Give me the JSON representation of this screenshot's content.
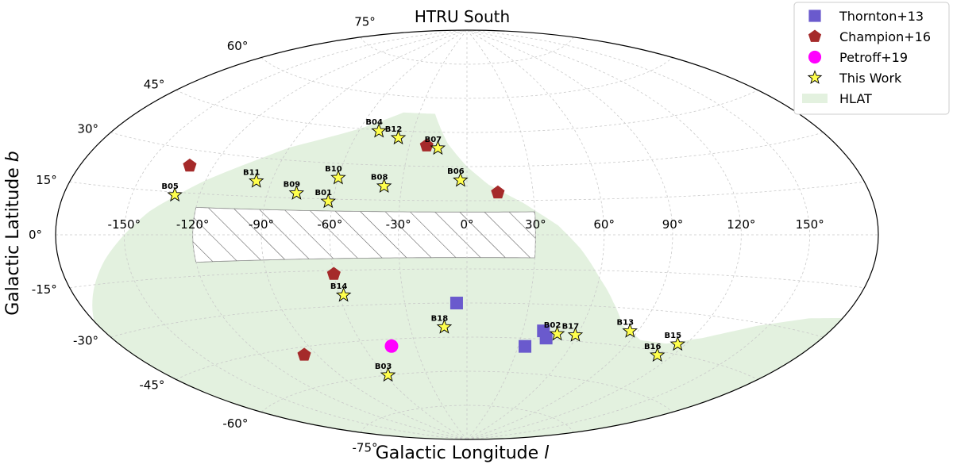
{
  "chart_data": {
    "type": "scatter",
    "projection": "aitoff",
    "title": "HTRU South",
    "xlabel": "Galactic Longitude",
    "xlabel_symbol": "l",
    "ylabel": "Galactic Latitude",
    "ylabel_symbol": "b",
    "xlim": [
      -180,
      180
    ],
    "ylim": [
      -90,
      90
    ],
    "grid": true,
    "legend_position": "top-right",
    "x_ticks": [
      {
        "value": -150,
        "label": "-150°"
      },
      {
        "value": -120,
        "label": "-120°"
      },
      {
        "value": -90,
        "label": "-90°"
      },
      {
        "value": -60,
        "label": "-60°"
      },
      {
        "value": -30,
        "label": "-30°"
      },
      {
        "value": 0,
        "label": "0°"
      },
      {
        "value": 30,
        "label": "30°"
      },
      {
        "value": 60,
        "label": "60°"
      },
      {
        "value": 90,
        "label": "90°"
      },
      {
        "value": 120,
        "label": "120°"
      },
      {
        "value": 150,
        "label": "150°"
      }
    ],
    "y_ticks": [
      {
        "value": 75,
        "label": "75°"
      },
      {
        "value": 60,
        "label": "60°"
      },
      {
        "value": 45,
        "label": "45°"
      },
      {
        "value": 30,
        "label": "30°"
      },
      {
        "value": 15,
        "label": "15°"
      },
      {
        "value": 0,
        "label": "0°"
      },
      {
        "value": -15,
        "label": "-15°"
      },
      {
        "value": -30,
        "label": "-30°"
      },
      {
        "value": -45,
        "label": "-45°"
      },
      {
        "value": -60,
        "label": "-60°"
      },
      {
        "value": -75,
        "label": "-75°"
      }
    ],
    "hatched_region": {
      "l_range": [
        -120,
        30
      ],
      "b_range": [
        -10,
        10
      ]
    },
    "regions": [
      {
        "name": "HLAT",
        "color": "#e3f1df",
        "outline": [
          [
            -20,
            53
          ],
          [
            -16,
            48
          ],
          [
            -10,
            40
          ],
          [
            0,
            30
          ],
          [
            10,
            22
          ],
          [
            25,
            14
          ],
          [
            40,
            4
          ],
          [
            50,
            -6
          ],
          [
            60,
            -18
          ],
          [
            70,
            -28
          ],
          [
            80,
            -37
          ],
          [
            95,
            -42
          ],
          [
            110,
            -42
          ],
          [
            125,
            -38
          ],
          [
            145,
            -31
          ],
          [
            165,
            -26
          ],
          [
            180,
            -24
          ],
          [
            180,
            -90
          ],
          [
            -180,
            -90
          ],
          [
            -180,
            -25
          ],
          [
            -160,
            -8
          ],
          [
            -140,
            8
          ],
          [
            -120,
            20
          ],
          [
            -90,
            35
          ],
          [
            -60,
            45
          ],
          [
            -40,
            53
          ],
          [
            -20,
            53
          ]
        ]
      }
    ],
    "series": [
      {
        "name": "Thornton+13",
        "marker": "square",
        "color": "#6a5acd",
        "points": [
          {
            "l": -5,
            "b": -30
          },
          {
            "l": 41,
            "b": -41.5
          },
          {
            "l": 44,
            "b": -44.5
          },
          {
            "l": 34,
            "b": -48.5
          }
        ]
      },
      {
        "name": "Champion+16",
        "marker": "pentagon",
        "color": "#a52a2a",
        "points": [
          {
            "l": -131,
            "b": 24.5
          },
          {
            "l": -21,
            "b": 39
          },
          {
            "l": 14,
            "b": 18.5
          },
          {
            "l": -60,
            "b": -16.5
          },
          {
            "l": -97,
            "b": -48
          }
        ]
      },
      {
        "name": "Petroff+19",
        "marker": "circle",
        "color": "#ff00ff",
        "points": [
          {
            "l": -44,
            "b": -48
          }
        ]
      },
      {
        "name": "This Work",
        "marker": "star",
        "color": "#ffff4d",
        "points": [
          {
            "id": "B01",
            "l": -62,
            "b": 14
          },
          {
            "id": "B02",
            "l": 49,
            "b": -42.5
          },
          {
            "id": "B03",
            "l": -58,
            "b": -60
          },
          {
            "id": "B04",
            "l": -49,
            "b": 44.5
          },
          {
            "id": "B05",
            "l": -131,
            "b": 14
          },
          {
            "id": "B06",
            "l": -3,
            "b": 24
          },
          {
            "id": "B07",
            "l": -15,
            "b": 38
          },
          {
            "id": "B08",
            "l": -38,
            "b": 21
          },
          {
            "id": "B09",
            "l": -77,
            "b": 17
          },
          {
            "id": "B10",
            "l": -60,
            "b": 24
          },
          {
            "id": "B11",
            "l": -97,
            "b": 21
          },
          {
            "id": "B12",
            "l": -37,
            "b": 42
          },
          {
            "id": "B13",
            "l": 86,
            "b": -39
          },
          {
            "id": "B14",
            "l": -58,
            "b": -25.5
          },
          {
            "id": "B15",
            "l": 116,
            "b": -41.5
          },
          {
            "id": "B16",
            "l": 112,
            "b": -46.5
          },
          {
            "id": "B17",
            "l": 59,
            "b": -42.5
          },
          {
            "id": "B18",
            "l": -12,
            "b": -40.5
          }
        ]
      },
      {
        "name": "HLAT",
        "marker": "region"
      }
    ]
  }
}
